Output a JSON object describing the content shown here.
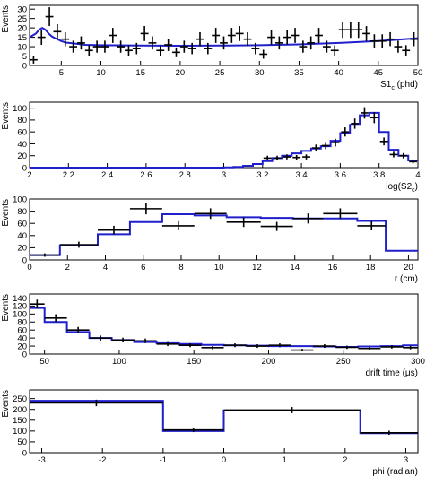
{
  "chart_data": [
    {
      "type": "line",
      "xlabel": "S1",
      "xlabel_sub": "c",
      "xlabel_unit": " (phd)",
      "ylabel": "Events",
      "xlim": [
        1,
        50
      ],
      "ylim": [
        0,
        32
      ],
      "xticks": [
        5,
        10,
        15,
        20,
        25,
        30,
        35,
        40,
        45,
        50
      ],
      "yticks": [
        0,
        5,
        10,
        15,
        20,
        25,
        30
      ],
      "model_line": {
        "x": [
          1,
          1.8,
          2.2,
          2.6,
          3,
          3.4,
          3.8,
          4.2,
          4.6,
          5,
          5.6,
          6,
          7,
          8,
          10,
          15,
          20,
          25,
          30,
          35,
          40,
          45,
          50
        ],
        "y": [
          15,
          17,
          19,
          20,
          19,
          17,
          15.5,
          14.5,
          13.8,
          13,
          12.2,
          12,
          11.5,
          11,
          10.8,
          10.6,
          10.5,
          10.6,
          10.8,
          11.2,
          12,
          13,
          14.5
        ]
      },
      "data_points": {
        "x": [
          1.5,
          2.5,
          3.5,
          4.5,
          5.5,
          6.5,
          7.5,
          8.5,
          9.5,
          10.5,
          11.5,
          12.5,
          13.5,
          14.5,
          15.5,
          16.5,
          17.5,
          18.5,
          19.5,
          20.5,
          21.5,
          22.5,
          23.5,
          24.5,
          25.5,
          26.5,
          27.5,
          28.5,
          29.5,
          30.5,
          31.5,
          32.5,
          33.5,
          34.5,
          35.5,
          36.5,
          37.5,
          38.5,
          39.5,
          40.5,
          41.5,
          42.5,
          43.5,
          44.5,
          45.5,
          46.5,
          47.5,
          48.5,
          49.5
        ],
        "y": [
          3,
          15,
          26,
          18,
          14,
          10,
          12,
          8,
          10,
          10,
          16,
          10,
          8,
          9,
          17,
          12,
          8,
          11,
          7,
          10,
          9,
          14,
          9,
          16,
          12,
          16,
          17,
          14,
          9,
          6,
          15,
          12,
          15,
          16,
          10,
          12,
          16,
          10,
          8,
          19,
          19,
          19,
          17,
          13,
          13,
          14,
          10,
          8,
          14
        ],
        "yerr": [
          2,
          4,
          5,
          4,
          3.7,
          3.2,
          3.5,
          2.8,
          3.2,
          3.2,
          4,
          3.2,
          2.8,
          3,
          4,
          3.5,
          2.8,
          3.3,
          2.6,
          3.2,
          3,
          3.7,
          3,
          4,
          3.5,
          4,
          4,
          3.7,
          3,
          2.4,
          3.8,
          3.5,
          3.8,
          4,
          3.2,
          3.5,
          4,
          3.2,
          2.8,
          4.3,
          4.3,
          4.3,
          4,
          3.6,
          3.6,
          3.7,
          3.2,
          2.8,
          3.7
        ]
      }
    },
    {
      "type": "line",
      "xlabel": "log(S2",
      "xlabel_sub": "c",
      "xlabel_unit": ")",
      "ylabel": "Events",
      "xlim": [
        2,
        4
      ],
      "ylim": [
        0,
        110
      ],
      "xticks": [
        2,
        2.2,
        2.4,
        2.6,
        2.8,
        3,
        3.2,
        3.4,
        3.6,
        3.8,
        4
      ],
      "yticks": [
        0,
        20,
        40,
        60,
        80,
        100
      ],
      "model_step": {
        "edges": [
          2,
          3.0,
          3.05,
          3.1,
          3.15,
          3.2,
          3.25,
          3.3,
          3.35,
          3.4,
          3.45,
          3.5,
          3.55,
          3.6,
          3.65,
          3.7,
          3.75,
          3.8,
          3.85,
          3.9,
          3.95,
          4
        ],
        "values": [
          0,
          0.5,
          1,
          3,
          6,
          11,
          16,
          20,
          24,
          28,
          32,
          36,
          45,
          58,
          72,
          88,
          92,
          60,
          30,
          20,
          12
        ]
      },
      "data_points": {
        "x": [
          3.225,
          3.275,
          3.325,
          3.375,
          3.425,
          3.475,
          3.525,
          3.575,
          3.625,
          3.675,
          3.725,
          3.775,
          3.825,
          3.875,
          3.925,
          3.975
        ],
        "y": [
          16,
          16,
          18,
          17,
          18,
          33,
          37,
          42,
          60,
          74,
          92,
          84,
          44,
          22,
          20,
          10
        ],
        "yerr": [
          4,
          4,
          4.2,
          4.1,
          4.2,
          5.7,
          6,
          6.5,
          7.7,
          8.6,
          9.6,
          9.2,
          6.6,
          4.7,
          4.5,
          3.2
        ]
      }
    },
    {
      "type": "line",
      "xlabel": "r (cm)",
      "ylabel": "Events",
      "xlim": [
        0,
        20.5
      ],
      "ylim": [
        0,
        100
      ],
      "xticks": [
        0,
        2,
        4,
        6,
        8,
        10,
        12,
        14,
        16,
        18,
        20
      ],
      "yticks": [
        0,
        20,
        40,
        60,
        80,
        100
      ],
      "model_step": {
        "edges": [
          0,
          1.6,
          3.6,
          5.3,
          7.0,
          8.7,
          10.4,
          12.2,
          13.9,
          15.5,
          17.3,
          18.8,
          20.5
        ],
        "values": [
          8,
          24,
          42,
          62,
          75,
          73,
          70,
          69,
          68,
          68,
          64,
          15
        ]
      },
      "data_points": {
        "x": [
          0.8,
          2.6,
          4.45,
          6.15,
          7.85,
          9.55,
          11.3,
          13.05,
          14.7,
          16.4,
          18.05
        ],
        "y": [
          8,
          25,
          49,
          84,
          56,
          76,
          62,
          55,
          68,
          76,
          56
        ],
        "xerr": [
          0.8,
          1.0,
          0.85,
          0.85,
          0.85,
          0.85,
          0.9,
          0.85,
          0.8,
          0.9,
          0.75
        ],
        "yerr": [
          2.8,
          5,
          7,
          9.2,
          7.5,
          8.7,
          7.9,
          7.4,
          8.2,
          8.7,
          7.5
        ]
      }
    },
    {
      "type": "line",
      "xlabel": "drift time (μs)",
      "ylabel": "Events",
      "xlim": [
        40,
        300
      ],
      "ylim": [
        0,
        150
      ],
      "xticks": [
        50,
        100,
        150,
        200,
        250,
        300
      ],
      "yticks": [
        0,
        20,
        40,
        60,
        80,
        100,
        120,
        140
      ],
      "model_step": {
        "edges": [
          40,
          50,
          65,
          80,
          95,
          110,
          125,
          140,
          155,
          170,
          185,
          200,
          215,
          230,
          245,
          260,
          275,
          290,
          300
        ],
        "values": [
          115,
          80,
          55,
          40,
          35,
          30,
          27,
          25,
          23,
          22,
          21,
          20,
          20,
          19,
          18,
          19,
          20,
          22
        ]
      },
      "data_points": {
        "x": [
          45,
          57.5,
          72.5,
          87.5,
          102.5,
          117.5,
          132.5,
          147.5,
          162.5,
          177.5,
          192.5,
          207.5,
          222.5,
          237.5,
          252.5,
          267.5,
          282.5,
          295
        ],
        "y": [
          125,
          90,
          60,
          40,
          35,
          33,
          25,
          22,
          16,
          22,
          20,
          22,
          10,
          20,
          17,
          14,
          18,
          16
        ],
        "xerr": [
          5,
          7.5,
          7.5,
          7.5,
          7.5,
          7.5,
          7.5,
          7.5,
          7.5,
          7.5,
          7.5,
          7.5,
          7.5,
          7.5,
          7.5,
          7.5,
          7.5,
          5
        ],
        "yerr": [
          11,
          9.5,
          7.7,
          6.3,
          5.9,
          5.7,
          5,
          4.7,
          4,
          4.7,
          4.5,
          4.7,
          3.2,
          4.5,
          4.1,
          3.7,
          4.2,
          4
        ]
      }
    },
    {
      "type": "line",
      "xlabel": "phi (radian)",
      "ylabel": "Events",
      "xlim": [
        -3.2,
        3.2
      ],
      "ylim": [
        0,
        290
      ],
      "xticks": [
        -3,
        -2,
        -1,
        0,
        1,
        2,
        3
      ],
      "yticks": [
        0,
        50,
        100,
        150,
        200,
        250
      ],
      "model_step": {
        "edges": [
          -3.2,
          -1.0,
          0.0,
          2.25,
          3.2
        ],
        "values": [
          240,
          100,
          195,
          90
        ]
      },
      "data_points": {
        "x": [
          -2.1,
          -0.5,
          1.125,
          2.725
        ],
        "y": [
          230,
          105,
          197,
          92
        ],
        "xerr": [
          1.1,
          0.5,
          1.125,
          0.475
        ],
        "yerr": [
          15,
          10,
          14,
          9.6
        ]
      }
    }
  ]
}
